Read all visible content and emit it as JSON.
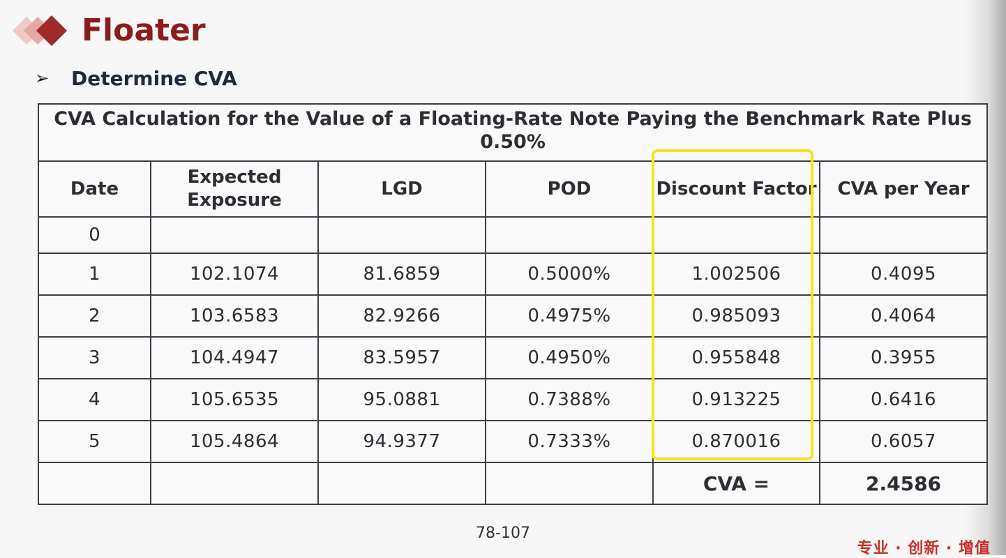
{
  "header": {
    "title": "Floater",
    "bullet": "Determine CVA"
  },
  "table": {
    "caption": "CVA Calculation for the Value of a Floating-Rate Note Paying the Benchmark Rate Plus 0.50%",
    "columns": [
      "Date",
      "Expected Exposure",
      "LGD",
      "POD",
      "Discount Factor",
      "CVA per Year"
    ],
    "rows": [
      [
        "0",
        "",
        "",
        "",
        "",
        ""
      ],
      [
        "1",
        "102.1074",
        "81.6859",
        "0.5000%",
        "1.002506",
        "0.4095"
      ],
      [
        "2",
        "103.6583",
        "82.9266",
        "0.4975%",
        "0.985093",
        "0.4064"
      ],
      [
        "3",
        "104.4947",
        "83.5957",
        "0.4950%",
        "0.955848",
        "0.3955"
      ],
      [
        "4",
        "105.6535",
        "95.0881",
        "0.7388%",
        "0.913225",
        "0.6416"
      ],
      [
        "5",
        "105.4864",
        "94.9377",
        "0.7333%",
        "0.870016",
        "0.6057"
      ]
    ],
    "total_label": "CVA =",
    "total_value": "2.4586"
  },
  "footer": {
    "page_number": "78-107",
    "slogan": "专业 · 创新 · 增值"
  },
  "colors": {
    "title": "#8c1c1c",
    "logo_dark": "#9e2a2a",
    "logo_light": "#e6a8a0",
    "highlight": "#f2e51c",
    "slogan": "#c8302a"
  }
}
